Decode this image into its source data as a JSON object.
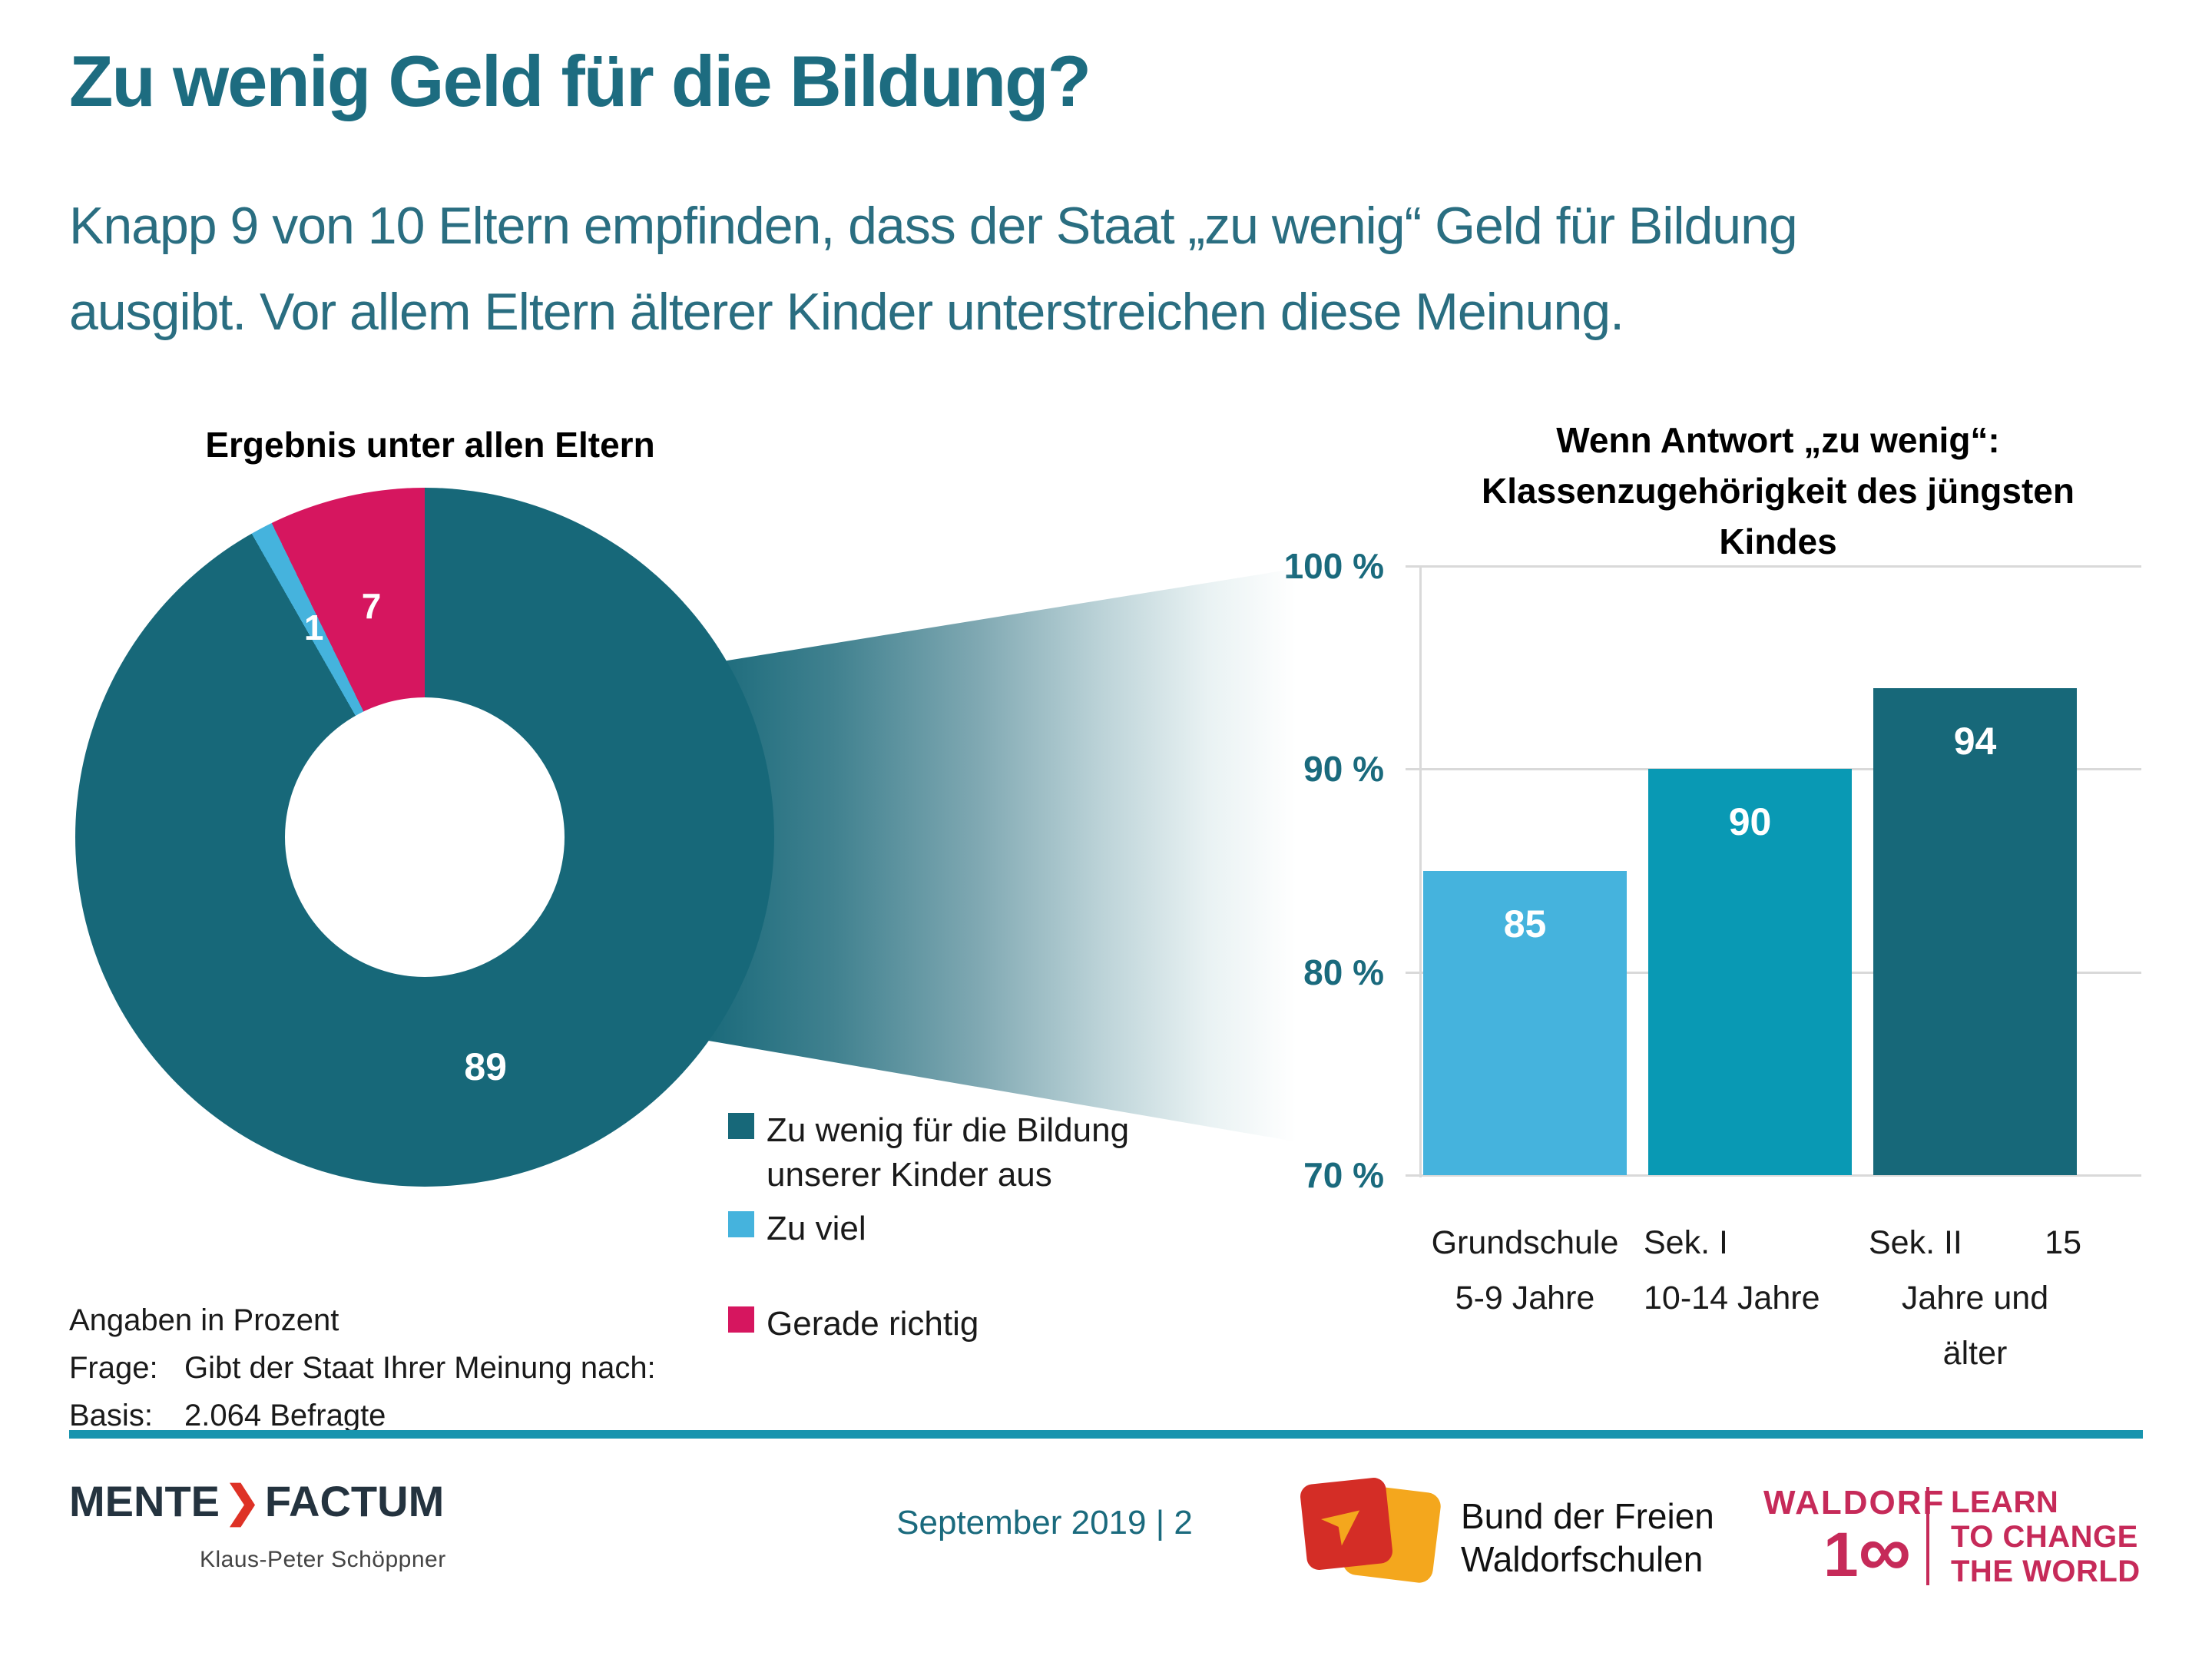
{
  "page": {
    "title": "Zu wenig Geld für die Bildung?",
    "subtitle_line1": "Knapp 9 von 10 Eltern empfinden, dass der Staat „zu wenig“ Geld für Bildung",
    "subtitle_line2": "ausgibt. Vor allem Eltern älterer Kinder unterstreichen diese Meinung."
  },
  "colors": {
    "teal_dark": "#176879",
    "teal_mid": "#0999b4",
    "blue_light": "#45b3dd",
    "pink": "#d6165f",
    "heading_teal": "#1d6c80",
    "gridline_gray": "#d9d9d9",
    "rule_teal": "#1794ae",
    "logo_navy": "#24333f",
    "logo_red": "#de3226",
    "bund_red": "#d42d26",
    "bund_orange": "#f4a71d",
    "waldorf_pink": "#c62a59"
  },
  "chart_data": [
    {
      "type": "pie",
      "donut": true,
      "title": "Ergebnis unter allen Eltern",
      "labels": [
        "Zu wenig für die Bildung unserer Kinder aus",
        "Zu viel",
        "Gerade richtig"
      ],
      "values": [
        89,
        1,
        7
      ],
      "value_labels": [
        "89",
        "1",
        "7"
      ],
      "colors": [
        "#176879",
        "#45b3dd",
        "#d6165f"
      ],
      "unit": "Prozent",
      "legend_position": "right-bottom"
    },
    {
      "type": "bar",
      "title": "Wenn Antwort „zu wenig“: Klassenzugehörigkeit des jüngsten Kindes",
      "title_lines": [
        "Wenn Antwort „zu wenig“:",
        "Klassenzugehörigkeit des jüngsten",
        "Kindes"
      ],
      "categories": [
        "Grundschule 5-9 Jahre",
        "Sek. I 10-14 Jahre",
        "Sek. II 15 Jahre und älter"
      ],
      "categories_display": [
        {
          "lines": [
            [
              "Grundschule"
            ],
            [
              "5-9 Jahre"
            ]
          ],
          "align": "center"
        },
        {
          "lines": [
            [
              "Sek. I"
            ],
            [
              "10-14 Jahre"
            ]
          ],
          "align": "left"
        },
        {
          "lines": [
            [
              "Sek. II",
              "15"
            ],
            [
              "Jahre und älter"
            ]
          ],
          "align": "center"
        }
      ],
      "values": [
        85,
        90,
        94
      ],
      "value_labels": [
        "85",
        "90",
        "94"
      ],
      "bar_colors": [
        "#45b3dd",
        "#0999b4",
        "#176879"
      ],
      "ylim": [
        70,
        100
      ],
      "yticks": [
        100,
        90,
        80,
        70
      ],
      "ytick_suffix": " %",
      "grid": true,
      "xlabel": "",
      "ylabel": ""
    }
  ],
  "legend": {
    "items": [
      {
        "label": "Zu wenig für die Bildung unserer Kinder aus",
        "color": "#176879"
      },
      {
        "label": "Zu viel",
        "color": "#45b3dd"
      },
      {
        "label": "Gerade richtig",
        "color": "#d6165f"
      }
    ]
  },
  "notes": {
    "line1": "Angaben in Prozent",
    "frage_label": "Frage:",
    "frage_text": "Gibt der Staat Ihrer Meinung nach:",
    "basis_label": "Basis:",
    "basis_text": "2.064 Befragte"
  },
  "footer": {
    "brand": {
      "part1": "MENTE",
      "chevron": "❯",
      "part2": "FACTUM",
      "byline": "Klaus-Peter Schöppner"
    },
    "date_page": "September 2019 | 2",
    "bund": {
      "line1": "Bund der Freien",
      "line2": "Waldorfschulen",
      "arrow_glyph": "➤"
    },
    "waldorf100": {
      "name": "WALDORF",
      "number_prefix": "1",
      "number_infinity": "∞",
      "tagline_lines": [
        "LEARN",
        "TO CHANGE",
        "THE WORLD"
      ]
    }
  }
}
